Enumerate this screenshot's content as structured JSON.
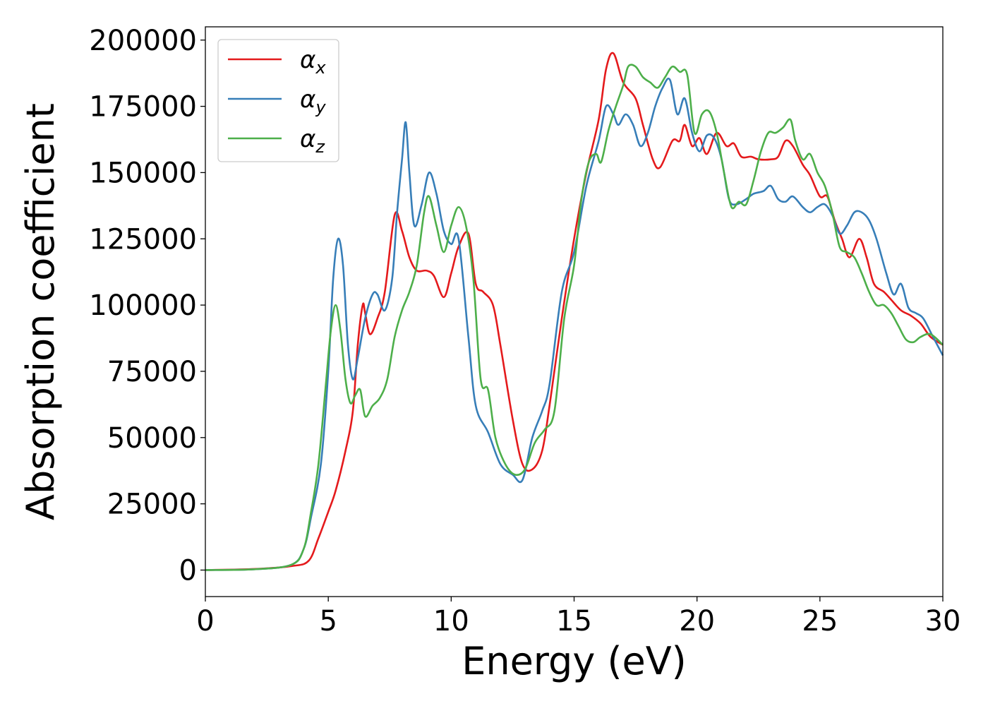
{
  "chart_data": {
    "type": "line",
    "xlabel": "Energy (eV)",
    "ylabel": "Absorption coefficient",
    "xlim": [
      0,
      30
    ],
    "ylim": [
      -10000,
      205000
    ],
    "xticks": [
      0,
      5,
      10,
      15,
      20,
      25,
      30
    ],
    "yticks": [
      0,
      25000,
      50000,
      75000,
      100000,
      125000,
      150000,
      175000,
      200000
    ],
    "grid": false,
    "legend_position": "top-left",
    "series": [
      {
        "name": "α_x",
        "label_base": "α",
        "label_sub": "x",
        "color": "#e41a1c",
        "x": [
          0,
          2,
          3.5,
          4.2,
          4.6,
          5.0,
          5.3,
          5.7,
          6.0,
          6.2,
          6.4,
          6.5,
          6.7,
          7.0,
          7.3,
          7.7,
          8.0,
          8.3,
          8.6,
          9.0,
          9.3,
          9.7,
          10.0,
          10.3,
          10.7,
          11.0,
          11.3,
          11.7,
          12.0,
          12.5,
          12.9,
          13.3,
          13.7,
          14.0,
          14.5,
          15.0,
          15.5,
          16.0,
          16.3,
          16.6,
          17.0,
          17.5,
          17.8,
          18.2,
          18.5,
          19.0,
          19.3,
          19.5,
          19.8,
          20.1,
          20.4,
          20.8,
          21.2,
          21.5,
          21.8,
          22.2,
          22.5,
          23.0,
          23.3,
          23.6,
          23.9,
          24.3,
          24.6,
          25.0,
          25.3,
          25.6,
          25.9,
          26.2,
          26.6,
          26.9,
          27.2,
          27.6,
          27.9,
          28.3,
          28.7,
          29.1,
          29.5,
          30.0
        ],
        "y": [
          0,
          400,
          1500,
          3500,
          12000,
          22000,
          30000,
          45000,
          60000,
          85000,
          100000,
          97000,
          89000,
          95000,
          105000,
          134000,
          128000,
          118000,
          113000,
          113000,
          111000,
          103000,
          112000,
          122000,
          127000,
          108000,
          105000,
          100000,
          85000,
          57000,
          40000,
          38000,
          45000,
          62000,
          95000,
          125000,
          150000,
          170000,
          189000,
          195000,
          184000,
          178000,
          168000,
          155000,
          152000,
          162000,
          162000,
          168000,
          160000,
          163000,
          157000,
          165000,
          160000,
          161000,
          156000,
          156000,
          155000,
          155000,
          156000,
          162000,
          160000,
          153000,
          149000,
          141000,
          141000,
          132000,
          125000,
          118000,
          125000,
          118000,
          108000,
          105000,
          102000,
          98000,
          96000,
          93000,
          88000,
          85000
        ]
      },
      {
        "name": "α_y",
        "label_base": "α",
        "label_sub": "y",
        "color": "#377eb8",
        "x": [
          0,
          2,
          3.5,
          4.0,
          4.3,
          4.7,
          5.0,
          5.2,
          5.4,
          5.6,
          5.8,
          6.0,
          6.2,
          6.5,
          6.8,
          7.0,
          7.3,
          7.6,
          7.8,
          8.0,
          8.15,
          8.3,
          8.5,
          8.8,
          9.1,
          9.4,
          9.7,
          10.0,
          10.3,
          10.7,
          11.0,
          11.5,
          12.0,
          12.5,
          12.9,
          13.3,
          13.7,
          14.0,
          14.5,
          15.0,
          15.5,
          16.0,
          16.3,
          16.6,
          16.8,
          17.1,
          17.4,
          17.7,
          18.0,
          18.3,
          18.6,
          18.9,
          19.2,
          19.5,
          19.8,
          20.1,
          20.4,
          20.7,
          21.0,
          21.3,
          21.6,
          22.0,
          22.3,
          22.7,
          23.0,
          23.3,
          23.6,
          23.9,
          24.3,
          24.6,
          24.9,
          25.2,
          25.5,
          25.8,
          26.1,
          26.4,
          26.7,
          27.0,
          27.3,
          27.7,
          28.0,
          28.3,
          28.6,
          28.9,
          29.2,
          29.6,
          30.0
        ],
        "y": [
          0,
          300,
          2000,
          8000,
          20000,
          40000,
          75000,
          110000,
          125000,
          115000,
          85000,
          72000,
          80000,
          95000,
          104000,
          104000,
          98000,
          110000,
          135000,
          155000,
          169000,
          150000,
          130000,
          138000,
          150000,
          142000,
          128000,
          123000,
          125000,
          88000,
          62000,
          52000,
          40000,
          36000,
          34000,
          50000,
          60000,
          70000,
          105000,
          120000,
          145000,
          162000,
          175000,
          172000,
          168000,
          172000,
          168000,
          160000,
          165000,
          175000,
          182000,
          185000,
          172000,
          178000,
          165000,
          158000,
          164000,
          163000,
          155000,
          140000,
          138000,
          140000,
          142000,
          143000,
          145000,
          140000,
          139000,
          141000,
          137000,
          135000,
          137000,
          138000,
          134000,
          127000,
          130000,
          135000,
          135000,
          132000,
          125000,
          112000,
          104000,
          108000,
          99000,
          97000,
          95000,
          88000,
          81000
        ]
      },
      {
        "name": "α_z",
        "label_base": "α",
        "label_sub": "z",
        "color": "#4daf4a",
        "x": [
          0,
          2,
          3.5,
          4.0,
          4.3,
          4.6,
          4.9,
          5.1,
          5.3,
          5.5,
          5.7,
          5.9,
          6.1,
          6.3,
          6.5,
          6.8,
          7.1,
          7.4,
          7.7,
          8.0,
          8.3,
          8.6,
          8.9,
          9.1,
          9.4,
          9.7,
          10.0,
          10.3,
          10.6,
          10.9,
          11.2,
          11.5,
          11.8,
          12.2,
          12.6,
          13.0,
          13.4,
          13.8,
          14.2,
          14.6,
          15.0,
          15.3,
          15.6,
          15.9,
          16.1,
          16.4,
          16.7,
          17.0,
          17.2,
          17.5,
          17.8,
          18.1,
          18.4,
          18.7,
          19.0,
          19.3,
          19.6,
          19.9,
          20.2,
          20.5,
          20.8,
          21.1,
          21.4,
          21.7,
          22.0,
          22.3,
          22.6,
          22.9,
          23.2,
          23.5,
          23.8,
          24.0,
          24.3,
          24.6,
          24.9,
          25.2,
          25.5,
          25.8,
          26.1,
          26.4,
          26.7,
          27.0,
          27.3,
          27.6,
          27.9,
          28.2,
          28.5,
          28.8,
          29.1,
          29.5,
          30.0
        ],
        "y": [
          0,
          300,
          2000,
          8000,
          22000,
          40000,
          70000,
          90000,
          100000,
          90000,
          72000,
          63000,
          66000,
          68000,
          58000,
          62000,
          65000,
          72000,
          88000,
          98000,
          105000,
          115000,
          135000,
          141000,
          130000,
          120000,
          130000,
          137000,
          130000,
          110000,
          72000,
          68000,
          50000,
          40000,
          36000,
          38000,
          48000,
          53000,
          60000,
          95000,
          115000,
          140000,
          154000,
          157000,
          154000,
          166000,
          175000,
          183000,
          190000,
          190000,
          186000,
          184000,
          182000,
          186000,
          190000,
          188000,
          187000,
          165000,
          172000,
          173000,
          165000,
          150000,
          137000,
          139000,
          138000,
          147000,
          158000,
          165000,
          165000,
          167000,
          170000,
          162000,
          155000,
          157000,
          150000,
          145000,
          135000,
          122000,
          120000,
          118000,
          112000,
          105000,
          100000,
          100000,
          97000,
          92000,
          87000,
          86000,
          88000,
          89000,
          85000
        ]
      }
    ]
  }
}
